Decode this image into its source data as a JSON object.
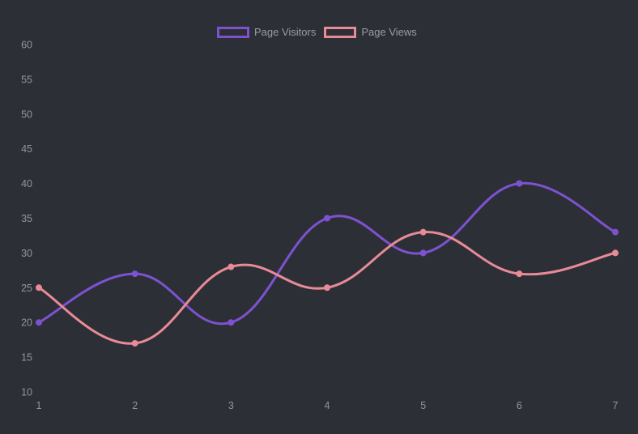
{
  "page": {
    "background": "#2d2f36"
  },
  "legend": {
    "position": "top",
    "text_color": "#9b9ca2",
    "items": [
      {
        "label": "Page Visitors",
        "color": "#7d52d1"
      },
      {
        "label": "Page Views",
        "color": "#e88b97"
      }
    ]
  },
  "chart_data": {
    "type": "line",
    "title": "",
    "xlabel": "",
    "ylabel": "",
    "x": [
      1,
      2,
      3,
      4,
      5,
      6,
      7
    ],
    "xtick_labels": [
      "1",
      "2",
      "3",
      "4",
      "5",
      "6",
      "7"
    ],
    "series": [
      {
        "name": "Page Visitors",
        "color": "#7d52d1",
        "values": [
          20,
          27,
          20,
          35,
          30,
          40,
          33
        ]
      },
      {
        "name": "Page Views",
        "color": "#e88b97",
        "values": [
          25,
          17,
          28,
          25,
          33,
          27,
          30
        ]
      }
    ],
    "ylim": [
      10,
      60
    ],
    "yticks": [
      10,
      15,
      20,
      25,
      30,
      35,
      40,
      45,
      50,
      55,
      60
    ],
    "grid": false,
    "legend_position": "top",
    "line_tension": 0.4,
    "line_width": 3,
    "point_radius": 4,
    "tick_color": "#94959b"
  }
}
